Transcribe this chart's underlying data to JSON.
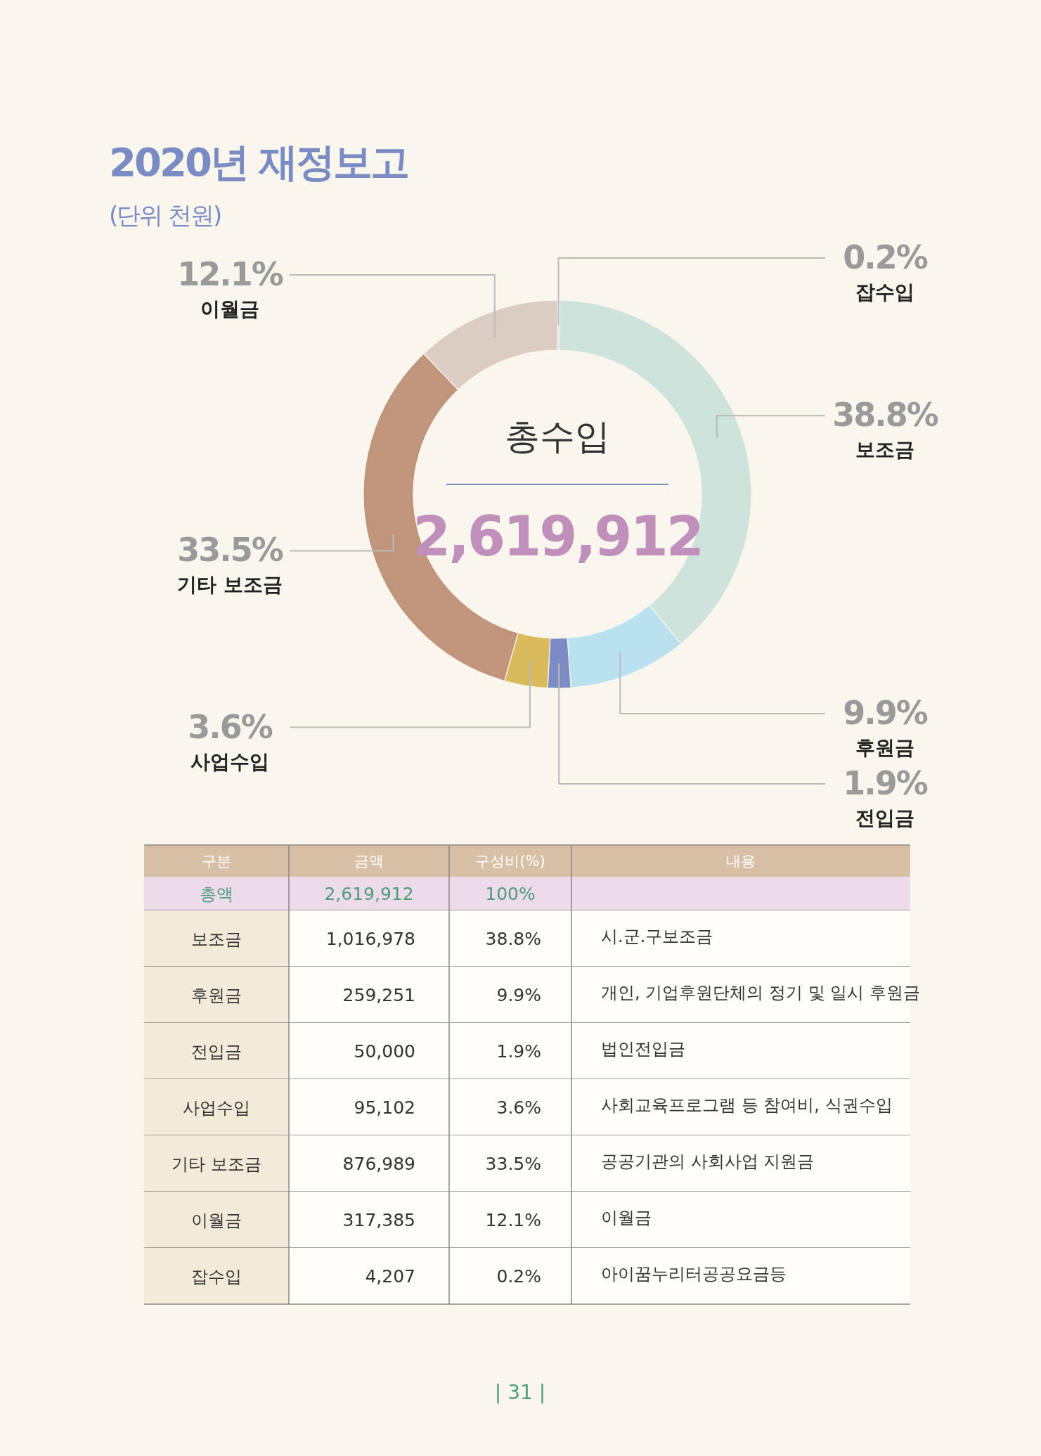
{
  "chart_data": [
    {
      "type": "donut",
      "title": "2020년 재정보고",
      "subtitle": "(단위 천원)",
      "categories": [
        "잡수입",
        "보조금",
        "후원금",
        "전입금",
        "사업수입",
        "기타 보조금",
        "이월금"
      ],
      "values": [
        0.2,
        38.8,
        9.9,
        1.9,
        3.6,
        33.5,
        12.1
      ],
      "colors": [
        "#ead8ea",
        "#cee3dc",
        "#b9e2ee",
        "#7b8cc4",
        "#d9ba5c",
        "#c0957c",
        "#dccdc3"
      ],
      "value_labels": [
        "0.2%",
        "38.8%",
        "9.9%",
        "1.9%",
        "3.6%",
        "33.5%",
        "12.1%"
      ],
      "annotations": [
        "총수입",
        "2,619,912"
      ]
    },
    {
      "type": "other",
      "categories": [
        "구분",
        "금액",
        "구성비(%)",
        "내용"
      ],
      "y_categories": [
        "총액",
        "보조금",
        "후원금",
        "전입금",
        "사업수입",
        "기타 보조금",
        "이월금",
        "잡수입"
      ],
      "cell_labels": [
        [
          "2,619,912",
          "100%",
          null
        ],
        [
          "1,016,978",
          "38.8%",
          "시.군.구보조금"
        ],
        [
          "259,251",
          "9.9%",
          "개인, 기업후원단체의 정기 및 일시 후원금"
        ],
        [
          "50,000",
          "1.9%",
          "법인전입금"
        ],
        [
          "95,102",
          "3.6%",
          "사회교육프로그램 등 참여비, 식권수입"
        ],
        [
          "876,989",
          "33.5%",
          "공공기관의 사회사업 지원금"
        ],
        [
          "317,385",
          "12.1%",
          "이월금"
        ],
        [
          "4,207",
          "0.2%",
          "아이꿈누리터공공요금등"
        ]
      ],
      "annotations": [
        "| 31 |"
      ]
    }
  ]
}
